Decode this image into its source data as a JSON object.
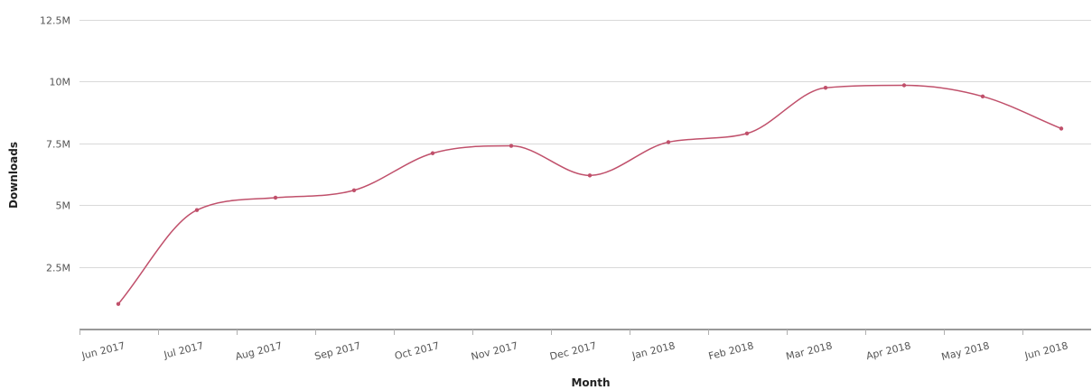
{
  "chart_data": {
    "type": "line",
    "title": "",
    "xlabel": "Month",
    "ylabel": "Downloads",
    "categories": [
      "Jun 2017",
      "Jul 2017",
      "Aug 2017",
      "Sep 2017",
      "Oct 2017",
      "Nov 2017",
      "Dec 2017",
      "Jan 2018",
      "Feb 2018",
      "Mar 2018",
      "Apr 2018",
      "May 2018",
      "Jun 2018"
    ],
    "series": [
      {
        "values": [
          1000000,
          4800000,
          5300000,
          5600000,
          7100000,
          7400000,
          6200000,
          7550000,
          7900000,
          9750000,
          9850000,
          9400000,
          8100000
        ],
        "color": "#c0506b"
      }
    ],
    "y_ticks": [
      2500000,
      5000000,
      7500000,
      10000000,
      12500000
    ],
    "y_tick_labels": [
      "2.5M",
      "5M",
      "7.5M",
      "10M",
      "12.5M"
    ],
    "ylim": [
      0,
      12500000
    ],
    "grid": true,
    "legend": "none"
  }
}
